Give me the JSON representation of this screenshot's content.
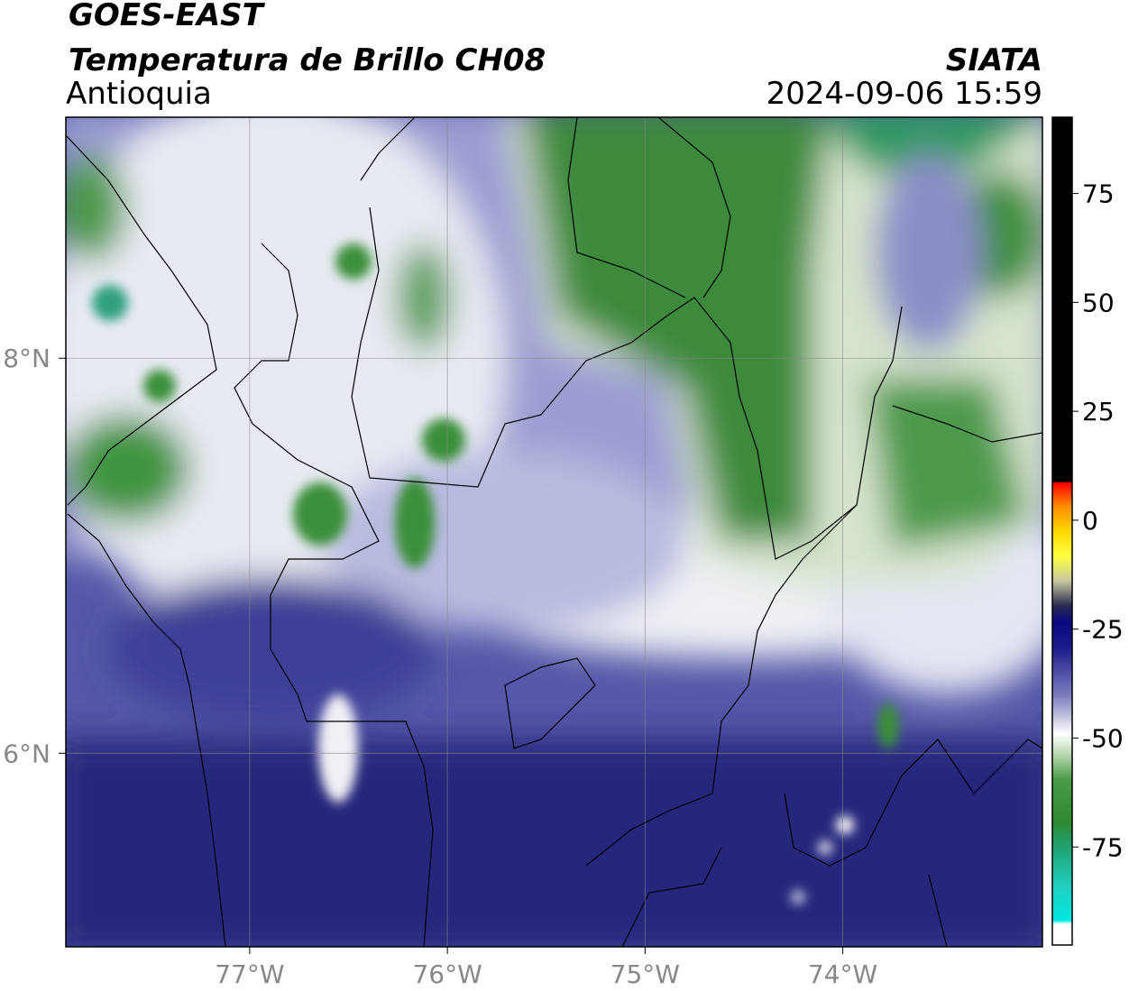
{
  "header": {
    "title": "GOES-EAST",
    "subtitle": "Temperatura de Brillo CH08",
    "region": "Antioquia",
    "source": "SIATA",
    "timestamp": "2024-09-06 15:59"
  },
  "map": {
    "xlim": [
      -77.93,
      -72.99
    ],
    "ylim": [
      5.02,
      9.22
    ],
    "xticks": [
      {
        "value": -77,
        "label": "77°W"
      },
      {
        "value": -76,
        "label": "76°W"
      },
      {
        "value": -75,
        "label": "75°W"
      },
      {
        "value": -74,
        "label": "74°W"
      }
    ],
    "yticks": [
      {
        "value": 6,
        "label": "6°N"
      },
      {
        "value": 8,
        "label": "8°N"
      }
    ]
  },
  "colorbar": {
    "lim": [
      -97.5,
      92.5
    ],
    "ticks": [
      -75,
      -50,
      -25,
      0,
      25,
      50,
      75
    ]
  }
}
